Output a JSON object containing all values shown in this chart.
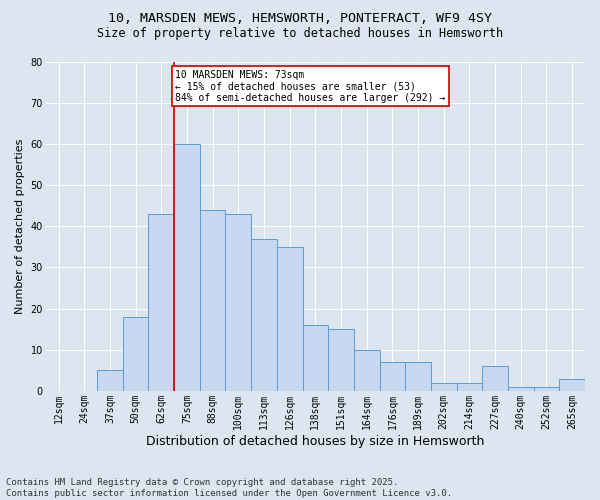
{
  "title_line1": "10, MARSDEN MEWS, HEMSWORTH, PONTEFRACT, WF9 4SY",
  "title_line2": "Size of property relative to detached houses in Hemsworth",
  "xlabel": "Distribution of detached houses by size in Hemsworth",
  "ylabel": "Number of detached properties",
  "categories": [
    "12sqm",
    "24sqm",
    "37sqm",
    "50sqm",
    "62sqm",
    "75sqm",
    "88sqm",
    "100sqm",
    "113sqm",
    "126sqm",
    "138sqm",
    "151sqm",
    "164sqm",
    "176sqm",
    "189sqm",
    "202sqm",
    "214sqm",
    "227sqm",
    "240sqm",
    "252sqm",
    "265sqm"
  ],
  "values": [
    0,
    0,
    5,
    18,
    43,
    60,
    44,
    43,
    37,
    35,
    16,
    15,
    10,
    7,
    7,
    2,
    2,
    6,
    1,
    1,
    3
  ],
  "bar_color": "#c6d9f1",
  "bar_edge_color": "#5b9bd5",
  "vline_x_index": 5,
  "vline_color": "#cc0000",
  "annotation_text": "10 MARSDEN MEWS: 73sqm\n← 15% of detached houses are smaller (53)\n84% of semi-detached houses are larger (292) →",
  "annotation_box_color": "#ffffff",
  "annotation_box_edge": "#cc0000",
  "ylim": [
    0,
    80
  ],
  "yticks": [
    0,
    10,
    20,
    30,
    40,
    50,
    60,
    70,
    80
  ],
  "background_color": "#dce6f1",
  "plot_bg_color": "#dce6f1",
  "footer_text": "Contains HM Land Registry data © Crown copyright and database right 2025.\nContains public sector information licensed under the Open Government Licence v3.0.",
  "title_fontsize": 9.5,
  "subtitle_fontsize": 8.5,
  "axis_label_fontsize": 8,
  "tick_fontsize": 7,
  "annotation_fontsize": 7,
  "footer_fontsize": 6.5
}
